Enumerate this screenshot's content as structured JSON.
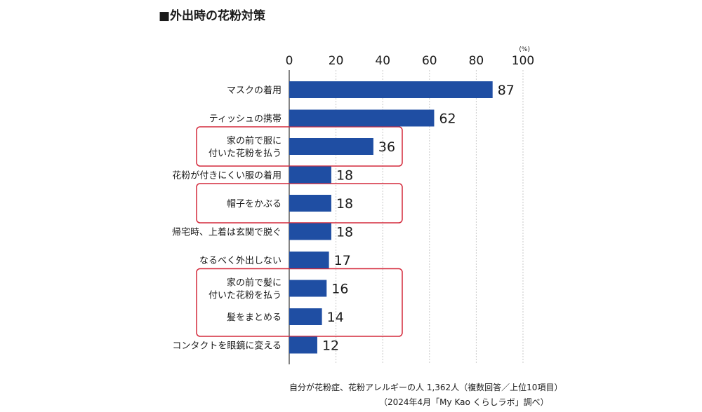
{
  "chart_data": {
    "type": "bar",
    "orientation": "horizontal",
    "title": "■外出時の花粉対策",
    "unit_label": "(%)",
    "xlim": [
      0,
      100
    ],
    "xticks": [
      "0",
      "20",
      "40",
      "60",
      "80",
      "100"
    ],
    "categories": [
      [
        "マスクの着用"
      ],
      [
        "ティッシュの携帯"
      ],
      [
        "家の前で服に",
        "付いた花粉を払う"
      ],
      [
        "花粉が付きにくい服の着用"
      ],
      [
        "帽子をかぶる"
      ],
      [
        "帰宅時、上着は玄関で脱ぐ"
      ],
      [
        "なるべく外出しない"
      ],
      [
        "家の前で髪に",
        "付いた花粉を払う"
      ],
      [
        "髪をまとめる"
      ],
      [
        "コンタクトを眼鏡に変える"
      ]
    ],
    "values": [
      87,
      62,
      36,
      18,
      18,
      18,
      17,
      16,
      14,
      12
    ],
    "highlight_groups": [
      [
        2
      ],
      [
        4
      ],
      [
        7,
        8
      ]
    ],
    "grid": true,
    "bar_color": "#1f4ea3",
    "highlight_color": "#d42a3c"
  },
  "footnote": {
    "line1": "自分が花粉症、花粉アレルギーの人 1,362人（複数回答／上位10項目）",
    "line2": "（2024年4月「My Kao くらしラボ」調べ）"
  }
}
